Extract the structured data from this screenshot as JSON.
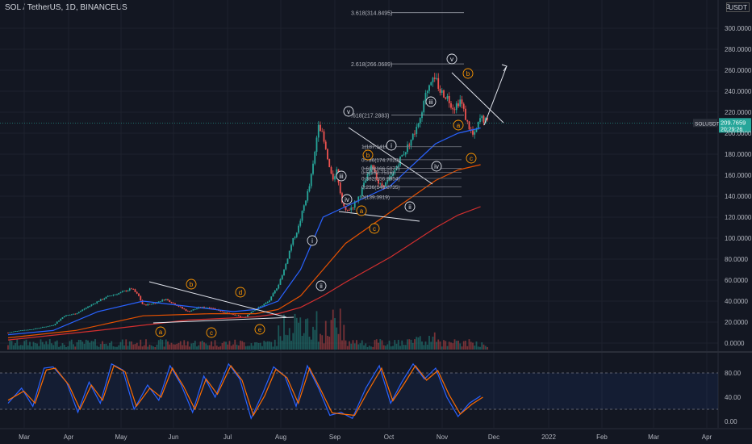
{
  "chart_data": {
    "type": "line",
    "title": "SOL / TetherUS, 1D, BINANCEUS",
    "currency": "USDT",
    "x_ticks": [
      "Mar",
      "Apr",
      "May",
      "Jun",
      "Jul",
      "Aug",
      "Sep",
      "Oct",
      "Nov",
      "Dec",
      "2022",
      "Feb",
      "Mar",
      "Apr"
    ],
    "y_ticks": [
      "300.0000",
      "280.0000",
      "260.0000",
      "240.0000",
      "220.0000",
      "200.0000",
      "180.0000",
      "160.0000",
      "140.0000",
      "120.0000",
      "100.0000",
      "80.0000",
      "60.0000",
      "40.0000",
      "20.0000",
      "0.0000"
    ],
    "top_partial_tick": "3",
    "ylim": [
      0,
      320
    ],
    "last_price": "209.7659",
    "countdown": "20:29:26",
    "price_label_tag": "SOLUSDT",
    "price_path": [
      [
        0,
        10
      ],
      [
        0.5,
        12
      ],
      [
        1,
        13
      ],
      [
        1.5,
        15
      ],
      [
        2,
        17
      ],
      [
        2.5,
        26
      ],
      [
        3,
        28
      ],
      [
        3.5,
        34
      ],
      [
        4,
        40
      ],
      [
        4.5,
        45
      ],
      [
        5,
        48
      ],
      [
        5.5,
        52
      ],
      [
        5.8,
        45
      ],
      [
        6,
        36
      ],
      [
        6.5,
        38
      ],
      [
        7,
        42
      ],
      [
        7.5,
        36
      ],
      [
        8,
        30
      ],
      [
        8.5,
        34
      ],
      [
        9,
        34
      ],
      [
        9.5,
        30
      ],
      [
        10,
        27
      ],
      [
        10.5,
        24
      ],
      [
        10.8,
        30
      ],
      [
        11,
        32
      ],
      [
        11.3,
        36
      ],
      [
        11.6,
        40
      ],
      [
        12,
        55
      ],
      [
        12.3,
        72
      ],
      [
        12.6,
        95
      ],
      [
        12.9,
        110
      ],
      [
        13.2,
        135
      ],
      [
        13.4,
        150
      ],
      [
        13.6,
        175
      ],
      [
        13.8,
        212
      ],
      [
        14,
        195
      ],
      [
        14.2,
        175
      ],
      [
        14.4,
        155
      ],
      [
        14.6,
        165
      ],
      [
        14.8,
        140
      ],
      [
        15,
        125
      ],
      [
        15.3,
        130
      ],
      [
        15.6,
        140
      ],
      [
        15.9,
        155
      ],
      [
        16.2,
        170
      ],
      [
        16.5,
        150
      ],
      [
        16.8,
        152
      ],
      [
        17.1,
        160
      ],
      [
        17.4,
        175
      ],
      [
        17.7,
        185
      ],
      [
        18,
        198
      ],
      [
        18.3,
        210
      ],
      [
        18.6,
        240
      ],
      [
        18.9,
        258
      ],
      [
        19.2,
        240
      ],
      [
        19.5,
        235
      ],
      [
        19.8,
        224
      ],
      [
        20.1,
        232
      ],
      [
        20.4,
        210
      ],
      [
        20.7,
        196
      ],
      [
        21,
        215
      ],
      [
        21.3,
        210
      ]
    ],
    "ema_fast": [
      [
        0,
        8
      ],
      [
        2,
        12
      ],
      [
        4,
        30
      ],
      [
        6,
        40
      ],
      [
        8,
        35
      ],
      [
        10,
        30
      ],
      [
        11,
        32
      ],
      [
        12,
        40
      ],
      [
        13,
        70
      ],
      [
        14,
        120
      ],
      [
        15,
        130
      ],
      [
        16,
        140
      ],
      [
        17,
        150
      ],
      [
        18,
        170
      ],
      [
        19,
        190
      ],
      [
        20,
        200
      ],
      [
        21,
        205
      ]
    ],
    "ema_mid": [
      [
        0,
        5
      ],
      [
        3,
        12
      ],
      [
        6,
        26
      ],
      [
        9,
        28
      ],
      [
        11,
        28
      ],
      [
        12,
        32
      ],
      [
        13,
        45
      ],
      [
        14,
        70
      ],
      [
        15,
        95
      ],
      [
        16,
        110
      ],
      [
        17,
        125
      ],
      [
        18,
        140
      ],
      [
        19,
        155
      ],
      [
        20,
        165
      ],
      [
        21,
        170
      ]
    ],
    "ema_slow": [
      [
        0,
        3
      ],
      [
        4,
        12
      ],
      [
        8,
        22
      ],
      [
        11,
        25
      ],
      [
        12,
        28
      ],
      [
        13,
        34
      ],
      [
        14,
        45
      ],
      [
        15,
        58
      ],
      [
        16,
        70
      ],
      [
        17,
        82
      ],
      [
        18,
        96
      ],
      [
        19,
        110
      ],
      [
        20,
        122
      ],
      [
        21,
        130
      ]
    ],
    "fib_top": [
      {
        "label": "3.618(314.8495)",
        "value": 314.85
      },
      {
        "label": "2.618(266.0689)",
        "value": 266.07
      },
      {
        "label": ".618(217.2883)",
        "value": 217.29
      }
    ],
    "fib_levels": [
      {
        "label": "1(187.1419)",
        "value": 187.14
      },
      {
        "label": "0.786(174.7028)",
        "value": 174.7
      },
      {
        "label": "0.618(166.5077)",
        "value": 166.51
      },
      {
        "label": "0.5(162.7516)",
        "value": 162.75
      },
      {
        "label": "0.382(156.9954)",
        "value": 156.99
      },
      {
        "label": "0.236(148.8735)",
        "value": 148.87
      },
      {
        "label": "0(139.3919)",
        "value": 139.39
      }
    ],
    "wave_labels_white": [
      "i",
      "ii",
      "iii",
      "iv",
      "v",
      "i",
      "ii",
      "iii",
      "iv",
      "v"
    ],
    "wave_labels_orange": [
      "a",
      "b",
      "c",
      "d",
      "e",
      "a",
      "b",
      "c",
      "a",
      "b",
      "c"
    ],
    "stoch_ticks": [
      "80.00",
      "40.00",
      "0.00"
    ],
    "stoch_k": [
      [
        0,
        30
      ],
      [
        0.6,
        55
      ],
      [
        1.1,
        25
      ],
      [
        1.6,
        88
      ],
      [
        2,
        90
      ],
      [
        2.6,
        65
      ],
      [
        3.1,
        15
      ],
      [
        3.6,
        65
      ],
      [
        4.1,
        30
      ],
      [
        4.6,
        95
      ],
      [
        5.1,
        85
      ],
      [
        5.6,
        20
      ],
      [
        6.2,
        60
      ],
      [
        6.7,
        35
      ],
      [
        7.2,
        92
      ],
      [
        7.7,
        60
      ],
      [
        8.2,
        15
      ],
      [
        8.7,
        75
      ],
      [
        9.2,
        40
      ],
      [
        9.8,
        95
      ],
      [
        10.3,
        70
      ],
      [
        10.8,
        5
      ],
      [
        11.3,
        45
      ],
      [
        11.8,
        90
      ],
      [
        12.3,
        75
      ],
      [
        12.8,
        25
      ],
      [
        13.3,
        92
      ],
      [
        13.8,
        55
      ],
      [
        14.3,
        10
      ],
      [
        14.8,
        15
      ],
      [
        15.3,
        5
      ],
      [
        15.9,
        55
      ],
      [
        16.5,
        92
      ],
      [
        17,
        30
      ],
      [
        17.5,
        65
      ],
      [
        18,
        95
      ],
      [
        18.5,
        70
      ],
      [
        19,
        88
      ],
      [
        19.5,
        40
      ],
      [
        20,
        8
      ],
      [
        20.5,
        30
      ],
      [
        21,
        42
      ]
    ],
    "stoch_d": [
      [
        0,
        35
      ],
      [
        0.7,
        50
      ],
      [
        1.2,
        30
      ],
      [
        1.7,
        85
      ],
      [
        2.1,
        88
      ],
      [
        2.7,
        60
      ],
      [
        3.2,
        20
      ],
      [
        3.7,
        60
      ],
      [
        4.2,
        35
      ],
      [
        4.7,
        92
      ],
      [
        5.2,
        82
      ],
      [
        5.7,
        25
      ],
      [
        6.3,
        55
      ],
      [
        6.8,
        40
      ],
      [
        7.3,
        88
      ],
      [
        7.8,
        58
      ],
      [
        8.3,
        20
      ],
      [
        8.8,
        70
      ],
      [
        9.3,
        45
      ],
      [
        9.9,
        92
      ],
      [
        10.4,
        68
      ],
      [
        10.9,
        10
      ],
      [
        11.4,
        42
      ],
      [
        11.9,
        86
      ],
      [
        12.4,
        72
      ],
      [
        12.9,
        30
      ],
      [
        13.4,
        88
      ],
      [
        13.9,
        52
      ],
      [
        14.4,
        14
      ],
      [
        14.9,
        12
      ],
      [
        15.4,
        10
      ],
      [
        16,
        50
      ],
      [
        16.6,
        88
      ],
      [
        17.1,
        34
      ],
      [
        17.6,
        62
      ],
      [
        18.1,
        92
      ],
      [
        18.6,
        68
      ],
      [
        19.1,
        84
      ],
      [
        19.6,
        44
      ],
      [
        20.1,
        12
      ],
      [
        20.6,
        28
      ],
      [
        21.1,
        40
      ]
    ]
  },
  "colors": {
    "background": "#131722",
    "grid": "#1e222d",
    "text": "#b2b5be",
    "candle_up": "#26a69a",
    "candle_down": "#ef5350",
    "ema_fast": "#2962ff",
    "ema_mid": "#e65100",
    "ema_slow": "#d32f2f",
    "stoch_k": "#2962ff",
    "stoch_d": "#ff6d00",
    "wave_white": "#e0e3eb",
    "wave_orange": "#ff9800",
    "price_tag": "#26a69a"
  }
}
